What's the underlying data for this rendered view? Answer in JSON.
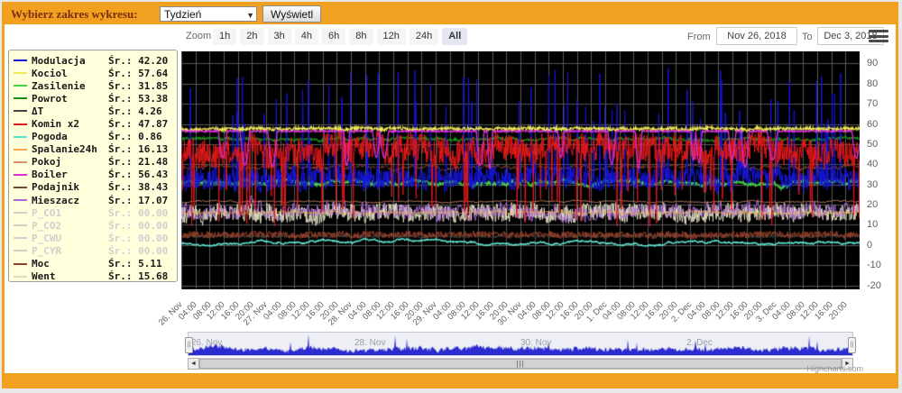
{
  "header": {
    "label": "Wybierz zakres wykresu:",
    "select_value": "Tydzień",
    "select_arrow": "▼",
    "button_label": "Wyświetl"
  },
  "legend": {
    "avg_prefix": "Śr.:",
    "items": [
      {
        "name": "Modulacja",
        "avg": "42.20",
        "color": "#1616DC",
        "enabled": true
      },
      {
        "name": "Kociol",
        "avg": "57.64",
        "color": "#EFEA55",
        "enabled": true
      },
      {
        "name": "Zasilenie",
        "avg": "31.85",
        "color": "#44D344",
        "enabled": true
      },
      {
        "name": "Powrot",
        "avg": "53.38",
        "color": "#1E8A1E",
        "enabled": true
      },
      {
        "name": "ΔT",
        "avg": "4.26",
        "color": "#444444",
        "enabled": true
      },
      {
        "name": "Komin x2",
        "avg": "47.87",
        "color": "#E31A1A",
        "enabled": true
      },
      {
        "name": "Pogoda",
        "avg": "0.86",
        "color": "#5CE0CE",
        "enabled": true
      },
      {
        "name": "Spalanie24h",
        "avg": "16.13",
        "color": "#F6A84C",
        "enabled": true
      },
      {
        "name": "Pokoj",
        "avg": "21.48",
        "color": "#D68F70",
        "enabled": true
      },
      {
        "name": "Boiler",
        "avg": "56.43",
        "color": "#DB30DB",
        "enabled": true
      },
      {
        "name": "Podajnik",
        "avg": "38.43",
        "color": "#7A4438",
        "enabled": true
      },
      {
        "name": "Mieszacz",
        "avg": "17.07",
        "color": "#AE6BD6",
        "enabled": true
      },
      {
        "name": "P_CO1",
        "avg": "00.00",
        "color": "#CFCFCF",
        "enabled": false
      },
      {
        "name": "P_CO2",
        "avg": "00.00",
        "color": "#CFCFCF",
        "enabled": false
      },
      {
        "name": "P_CWU",
        "avg": "00.00",
        "color": "#CFCFCF",
        "enabled": false
      },
      {
        "name": "P_CYR",
        "avg": "00.00",
        "color": "#CFCFCF",
        "enabled": false
      },
      {
        "name": "Moc",
        "avg": "5.11",
        "color": "#93402A",
        "enabled": true
      },
      {
        "name": "Went",
        "avg": "15.68",
        "color": "#DFDCC0",
        "enabled": true
      }
    ]
  },
  "toolbar": {
    "zoom_label": "Zoom",
    "zoom_buttons": [
      "1h",
      "2h",
      "3h",
      "4h",
      "6h",
      "8h",
      "12h",
      "24h",
      "All"
    ],
    "selected": "All",
    "from_label": "From",
    "from_value": "Nov 26, 2018",
    "to_label": "To",
    "to_value": "Dec 3, 2018"
  },
  "chart_data": {
    "type": "line",
    "title": "",
    "xlabel": "",
    "ylabel": "",
    "x_range": [
      "26. Nov 2018",
      "3. Dec 2018"
    ],
    "x_tick_labels": [
      "26. Nov",
      "04:00",
      "08:00",
      "12:00",
      "16:00",
      "20:00",
      "27. Nov",
      "04:00",
      "08:00",
      "12:00",
      "16:00",
      "20:00",
      "28. Nov",
      "04:00",
      "08:00",
      "12:00",
      "16:00",
      "20:00",
      "29. Nov",
      "04:00",
      "08:00",
      "12:00",
      "16:00",
      "20:00",
      "30. Nov",
      "04:00",
      "08:00",
      "12:00",
      "16:00",
      "20:00",
      "1. Dec",
      "04:00",
      "08:00",
      "12:00",
      "16:00",
      "20:00",
      "2. Dec",
      "04:00",
      "08:00",
      "12:00",
      "16:00",
      "20:00",
      "3. Dec",
      "04:00",
      "08:00",
      "12:00",
      "16:00",
      "20:00"
    ],
    "y_ticks": [
      90,
      80,
      70,
      60,
      50,
      40,
      30,
      20,
      10,
      0,
      -10,
      -20
    ],
    "y_min": -22,
    "y_max": 96,
    "grid": true,
    "plot_bg": "#000000",
    "grid_color": "#585858",
    "legend_position": "left",
    "points_per_series": 1500,
    "series": [
      {
        "name": "Modulacja",
        "color": "#1616DC",
        "average": 42.2,
        "approx_range": [
          13,
          90
        ],
        "width": 1,
        "gen": {
          "base": 33,
          "noise": 5,
          "walk": 2,
          "pull": 0.08,
          "spike_p": 0.055,
          "spike_lo": 50,
          "spike_hi": 88,
          "min": 13,
          "max": 90,
          "seed": 11
        }
      },
      {
        "name": "Kociol",
        "color": "#EFEA55",
        "average": 57.64,
        "approx_range": [
          54,
          60
        ],
        "width": 1.2,
        "gen": {
          "base": 57.6,
          "noise": 0.8,
          "walk": 0.35,
          "pull": 0.1,
          "min": 54,
          "max": 60.5,
          "seed": 22
        }
      },
      {
        "name": "Zasilenie",
        "color": "#44D344",
        "average": 31.85,
        "approx_range": [
          27,
          34
        ],
        "width": 1.5,
        "gen": {
          "base": 30.8,
          "noise": 0.5,
          "walk": 0.9,
          "pull": 0.06,
          "min": 27,
          "max": 33.5,
          "seed": 33
        }
      },
      {
        "name": "Powrot",
        "color": "#1E8A1E",
        "average": 53.38,
        "approx_range": [
          49,
          55
        ],
        "width": 1.2,
        "gen": {
          "base": 52.6,
          "noise": 0.45,
          "walk": 0.55,
          "pull": 0.06,
          "min": 49,
          "max": 55,
          "seed": 44
        }
      },
      {
        "name": "ΔT",
        "color": "#444444",
        "average": 4.26,
        "approx_range": [
          2,
          7
        ],
        "width": 1,
        "gen": {
          "base": 4.3,
          "noise": 0.7,
          "walk": 0.25,
          "pull": 0.1,
          "min": 2,
          "max": 7,
          "seed": 55
        }
      },
      {
        "name": "Komin x2",
        "color": "#E31A1A",
        "average": 47.87,
        "approx_range": [
          7,
          62
        ],
        "width": 1,
        "gen": {
          "base": 47,
          "noise": 6.5,
          "walk": 2.4,
          "pull": 0.05,
          "spike_p": 0.05,
          "spike_lo": 9,
          "spike_hi": 28,
          "min": 7,
          "max": 62,
          "seed": 66
        }
      },
      {
        "name": "Pogoda",
        "color": "#5CE0CE",
        "average": 0.86,
        "approx_range": [
          -5,
          7
        ],
        "width": 1.5,
        "gen": {
          "base": 0.9,
          "noise": 0.12,
          "walk": 0.5,
          "pull": 0.015,
          "min": -5,
          "max": 7,
          "seed": 77
        }
      },
      {
        "name": "Spalanie24h",
        "color": "#F6A84C",
        "average": 16.13,
        "approx_range": [
          13.5,
          18.5
        ],
        "width": 1,
        "gen": {
          "base": 16.1,
          "noise": 0.25,
          "walk": 0.5,
          "pull": 0.07,
          "min": 13.5,
          "max": 18.5,
          "seed": 88
        }
      },
      {
        "name": "Pokoj",
        "color": "#D68F70",
        "average": 21.48,
        "approx_range": [
          20,
          23.5
        ],
        "width": 1,
        "gen": {
          "base": 21.5,
          "noise": 0.15,
          "walk": 0.35,
          "pull": 0.05,
          "min": 19.8,
          "max": 23.5,
          "seed": 99
        }
      },
      {
        "name": "Boiler",
        "color": "#DB30DB",
        "average": 56.43,
        "approx_range": [
          34,
          58
        ],
        "width": 1.3,
        "gen": {
          "base": 56.4,
          "noise": 0.35,
          "walk": 0.12,
          "pull": 0.2,
          "dip_p": 0.012,
          "dip_lo": 38,
          "min": 34,
          "max": 58,
          "seed": 111
        }
      },
      {
        "name": "Podajnik",
        "color": "#7A4438",
        "average": 38.43,
        "approx_range": [
          35,
          41.5
        ],
        "width": 1,
        "gen": {
          "base": 38.4,
          "noise": 0.6,
          "walk": 0.8,
          "pull": 0.06,
          "min": 35,
          "max": 41.5,
          "seed": 122
        }
      },
      {
        "name": "Mieszacz",
        "color": "#AE6BD6",
        "average": 17.07,
        "approx_range": [
          9.5,
          25.5
        ],
        "width": 1,
        "gen": {
          "base": 17,
          "noise": 3.4,
          "walk": 1.2,
          "pull": 0.06,
          "hold": 3,
          "min": 9.5,
          "max": 25.5,
          "seed": 133
        }
      },
      {
        "name": "P_CO1",
        "color": "#CFCFCF",
        "average": 0,
        "enabled": false
      },
      {
        "name": "P_CO2",
        "color": "#CFCFCF",
        "average": 0,
        "enabled": false
      },
      {
        "name": "P_CWU",
        "color": "#CFCFCF",
        "average": 0,
        "enabled": false
      },
      {
        "name": "P_CYR",
        "color": "#CFCFCF",
        "average": 0,
        "enabled": false
      },
      {
        "name": "Moc",
        "color": "#93402A",
        "average": 5.11,
        "approx_range": [
          1.2,
          10
        ],
        "width": 1,
        "gen": {
          "base": 5.1,
          "noise": 1.6,
          "walk": 0.45,
          "pull": 0.08,
          "min": 1.2,
          "max": 10,
          "seed": 144
        }
      },
      {
        "name": "Went",
        "color": "#DFDCC0",
        "average": 15.68,
        "approx_range": [
          4.5,
          26.5
        ],
        "width": 1,
        "gen": {
          "base": 15.7,
          "noise": 4.2,
          "walk": 1.1,
          "pull": 0.06,
          "min": 4.5,
          "max": 26.5,
          "seed": 155
        }
      }
    ],
    "draw_order": [
      "ΔT",
      "Went",
      "Mieszacz",
      "Spalanie24h",
      "Pokoj",
      "Moc",
      "Pogoda",
      "Podajnik",
      "Zasilenie",
      "Powrot",
      "Modulacja",
      "Komin x2",
      "Kociol",
      "Boiler"
    ],
    "navigator": {
      "fill_color": "#2B2BD0",
      "bg_color": "#EDEFF5",
      "labels": [
        {
          "text": "26. Nov",
          "pos": 0.004
        },
        {
          "text": "28. Nov",
          "pos": 0.25
        },
        {
          "text": "30. Nov",
          "pos": 0.5
        },
        {
          "text": "2. Dec",
          "pos": 0.75
        }
      ],
      "handle_grip": "||"
    },
    "scrollbar": {
      "left_arrow": "◄",
      "right_arrow": "►",
      "grip": "|||"
    },
    "credit": "Highcharts.com"
  }
}
